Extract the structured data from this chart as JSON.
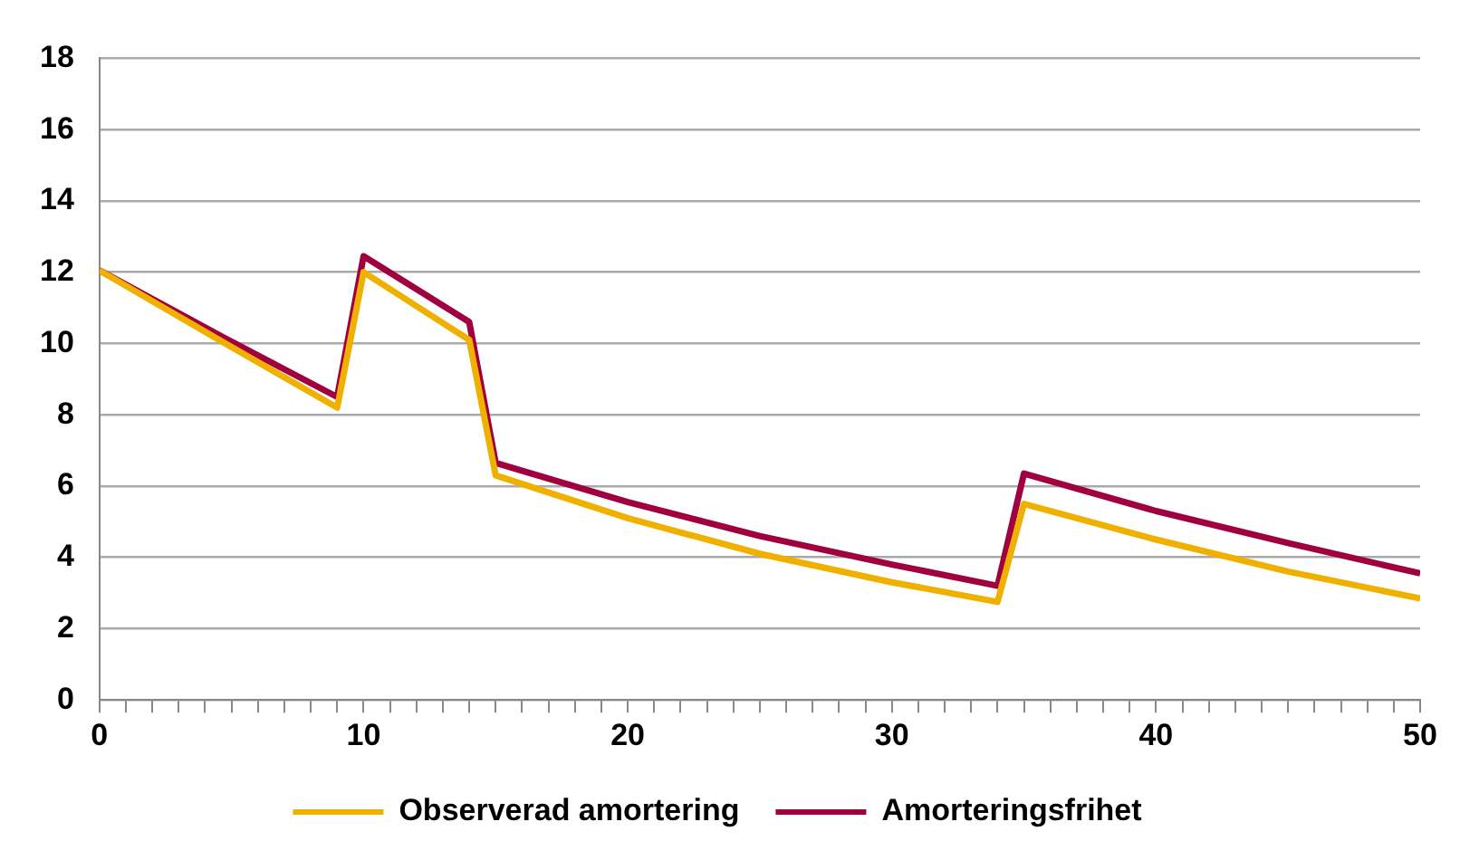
{
  "chart_data": {
    "type": "line",
    "x": [
      0,
      5,
      9,
      10,
      14,
      15,
      20,
      25,
      30,
      34,
      35,
      40,
      45,
      50
    ],
    "series": [
      {
        "name": "Observerad amortering",
        "color": "#f0b000",
        "values": [
          12.05,
          9.9,
          8.2,
          12.0,
          10.1,
          6.3,
          5.1,
          4.1,
          3.3,
          2.75,
          5.5,
          4.5,
          3.6,
          2.85
        ]
      },
      {
        "name": "Amorteringsfrihet",
        "color": "#a00040",
        "values": [
          12.05,
          10.05,
          8.5,
          12.45,
          10.6,
          6.65,
          5.55,
          4.6,
          3.8,
          3.2,
          6.35,
          5.3,
          4.4,
          3.55
        ]
      }
    ],
    "xlim": [
      0,
      50
    ],
    "xticks": [
      0,
      {
        "value": 1,
        "label": null
      },
      {
        "value": 2,
        "label": null
      },
      {
        "value": 3,
        "label": null
      },
      {
        "value": 4,
        "label": null
      },
      {
        "value": 5,
        "label": null
      },
      {
        "value": 6,
        "label": null
      },
      {
        "value": 7,
        "label": null
      },
      {
        "value": 8,
        "label": null
      },
      {
        "value": 9,
        "label": null
      },
      10,
      {
        "value": 11,
        "label": null
      },
      {
        "value": 12,
        "label": null
      },
      {
        "value": 13,
        "label": null
      },
      {
        "value": 14,
        "label": null
      },
      {
        "value": 15,
        "label": null
      },
      {
        "value": 16,
        "label": null
      },
      {
        "value": 17,
        "label": null
      },
      {
        "value": 18,
        "label": null
      },
      {
        "value": 19,
        "label": null
      },
      20,
      {
        "value": 21,
        "label": null
      },
      {
        "value": 22,
        "label": null
      },
      {
        "value": 23,
        "label": null
      },
      {
        "value": 24,
        "label": null
      },
      {
        "value": 25,
        "label": null
      },
      {
        "value": 26,
        "label": null
      },
      {
        "value": 27,
        "label": null
      },
      {
        "value": 28,
        "label": null
      },
      {
        "value": 29,
        "label": null
      },
      30,
      {
        "value": 31,
        "label": null
      },
      {
        "value": 32,
        "label": null
      },
      {
        "value": 33,
        "label": null
      },
      {
        "value": 34,
        "label": null
      },
      {
        "value": 35,
        "label": null
      },
      {
        "value": 36,
        "label": null
      },
      {
        "value": 37,
        "label": null
      },
      {
        "value": 38,
        "label": null
      },
      {
        "value": 39,
        "label": null
      },
      40,
      {
        "value": 41,
        "label": null
      },
      {
        "value": 42,
        "label": null
      },
      {
        "value": 43,
        "label": null
      },
      {
        "value": 44,
        "label": null
      },
      {
        "value": 45,
        "label": null
      },
      {
        "value": 46,
        "label": null
      },
      {
        "value": 47,
        "label": null
      },
      {
        "value": 48,
        "label": null
      },
      {
        "value": 49,
        "label": null
      },
      50
    ],
    "ylim": [
      0,
      18
    ],
    "yticks": [
      0,
      2,
      4,
      6,
      8,
      10,
      12,
      14,
      16,
      18
    ],
    "grid": "y",
    "legend": "bottom",
    "marker": "none",
    "line_style": "solid"
  }
}
